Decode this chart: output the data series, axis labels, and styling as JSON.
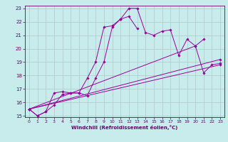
{
  "xlabel": "Windchill (Refroidissement éolien,°C)",
  "ylabel": "",
  "background_color": "#c8ecec",
  "line_color": "#990099",
  "grid_color": "#b0c8c8",
  "axes_border_color": "#660066",
  "tick_color": "#660066",
  "xlim": [
    -0.5,
    23.5
  ],
  "ylim": [
    14.9,
    23.2
  ],
  "xticks": [
    0,
    1,
    2,
    3,
    4,
    5,
    6,
    7,
    8,
    9,
    10,
    11,
    12,
    13,
    14,
    15,
    16,
    17,
    18,
    19,
    20,
    21,
    22,
    23
  ],
  "yticks": [
    15,
    16,
    17,
    18,
    19,
    20,
    21,
    22,
    23
  ],
  "lines": [
    {
      "x": [
        0,
        1,
        2,
        3,
        4,
        5,
        6,
        7,
        8,
        9,
        10,
        11,
        12,
        13,
        14,
        15,
        16,
        17,
        18,
        19,
        20,
        21,
        22,
        23
      ],
      "y": [
        15.5,
        15.0,
        15.3,
        16.7,
        16.8,
        16.7,
        16.7,
        17.8,
        19.0,
        21.6,
        21.7,
        22.2,
        23.0,
        23.0,
        21.2,
        21.0,
        21.3,
        21.4,
        19.5,
        20.7,
        20.2,
        20.7,
        null,
        null
      ]
    },
    {
      "x": [
        0,
        1,
        2,
        3,
        4,
        5,
        6,
        7,
        8,
        9,
        10,
        11,
        12,
        13,
        14,
        15,
        16,
        17,
        18,
        19,
        20,
        21,
        22,
        23
      ],
      "y": [
        15.5,
        15.0,
        15.3,
        15.8,
        16.6,
        16.7,
        16.7,
        16.5,
        17.8,
        19.0,
        21.6,
        22.2,
        22.4,
        21.5,
        null,
        null,
        null,
        null,
        null,
        null,
        null,
        null,
        null,
        null
      ]
    },
    {
      "x": [
        0,
        23
      ],
      "y": [
        15.5,
        18.8
      ]
    },
    {
      "x": [
        0,
        20,
        21,
        22,
        23
      ],
      "y": [
        15.5,
        20.2,
        18.2,
        18.8,
        18.9
      ]
    },
    {
      "x": [
        0,
        23
      ],
      "y": [
        15.5,
        19.2
      ]
    }
  ]
}
